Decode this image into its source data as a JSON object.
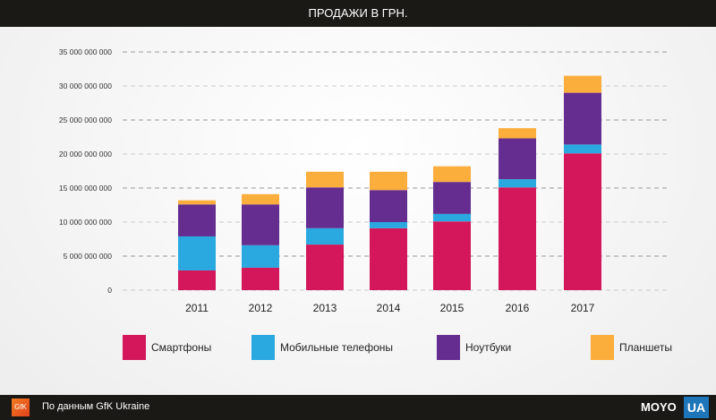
{
  "header": {
    "title": "ПРОДАЖИ В ГРН."
  },
  "footer": {
    "source": "По данным GfK Ukraine",
    "gfk_logo": "GfK",
    "brand": "MOYO",
    "brand_suffix": "UA"
  },
  "chart_data": {
    "type": "bar",
    "stacked": true,
    "title": "ПРОДАЖИ В ГРН.",
    "categories": [
      "2011",
      "2012",
      "2013",
      "2014",
      "2015",
      "2016",
      "2017"
    ],
    "series": [
      {
        "name": "Смартфоны",
        "color": "#d4175a",
        "values": [
          2900000000,
          3300000000,
          6700000000,
          9100000000,
          10100000000,
          15100000000,
          20100000000
        ]
      },
      {
        "name": "Мобильные телефоны",
        "color": "#2aa9e0",
        "values": [
          5000000000,
          3300000000,
          2400000000,
          900000000,
          1100000000,
          1200000000,
          1300000000
        ]
      },
      {
        "name": "Ноутбуки",
        "color": "#652d90",
        "values": [
          4700000000,
          6000000000,
          6000000000,
          4700000000,
          4700000000,
          6000000000,
          7600000000
        ]
      },
      {
        "name": "Планшеты",
        "color": "#fbae3c",
        "values": [
          600000000,
          1500000000,
          2300000000,
          2700000000,
          2300000000,
          1500000000,
          2500000000
        ]
      }
    ],
    "yticks": [
      "0",
      "5 000 000 000",
      "10 000 000 000",
      "15 000 000 000",
      "20 000 000 000",
      "25 000 000 000",
      "30 000 000 000",
      "35 000 000 000"
    ],
    "ylim": [
      0,
      35000000000
    ],
    "grid": true,
    "legend": "bottom"
  }
}
